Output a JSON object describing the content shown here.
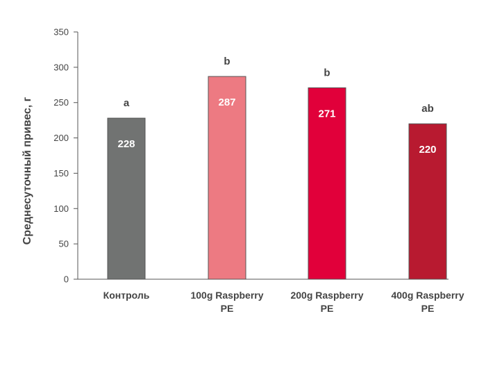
{
  "chart_data": {
    "type": "bar",
    "title": "",
    "xlabel": "",
    "ylabel": "Среднесуточный привес, г",
    "ylim": [
      0,
      350
    ],
    "yticks": [
      0,
      50,
      100,
      150,
      200,
      250,
      300,
      350
    ],
    "grid": false,
    "categories": [
      [
        "Контроль"
      ],
      [
        "100g Raspberry",
        "PE"
      ],
      [
        "200g Raspberry",
        "PE"
      ],
      [
        "400g Raspberry",
        "PE"
      ]
    ],
    "values": [
      228,
      287,
      271,
      220
    ],
    "value_labels": [
      "228",
      "287",
      "271",
      "220"
    ],
    "significance": [
      "a",
      "b",
      "b",
      "ab"
    ],
    "colors": [
      "#717372",
      "#ed7a82",
      "#e1003a",
      "#b81a30"
    ]
  }
}
